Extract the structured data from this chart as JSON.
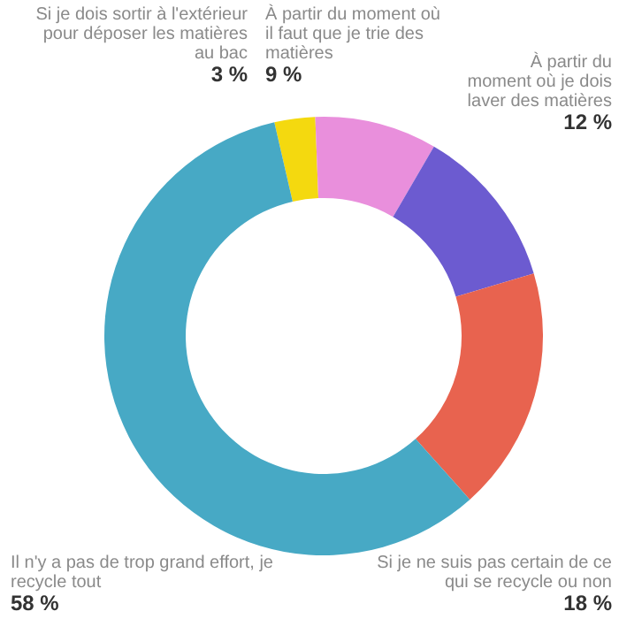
{
  "chart_data": {
    "type": "donut",
    "categories": [
      "Si je dois sortir à l'extérieur pour déposer les matières au bac",
      "À partir du moment où il faut que je trie des matières",
      "À partir du moment où je dois laver des matières",
      "Si je ne suis pas certain de ce qui se recycle ou non",
      "Il n'y a pas de trop grand effort, je recycle tout"
    ],
    "values": [
      3,
      9,
      12,
      18,
      58
    ],
    "colors": [
      "#f4d90f",
      "#e98fdc",
      "#6c5bd0",
      "#e8634f",
      "#47a9c5"
    ],
    "value_labels": [
      "3 %",
      "9 %",
      "12 %",
      "18 %",
      "58 %"
    ]
  }
}
